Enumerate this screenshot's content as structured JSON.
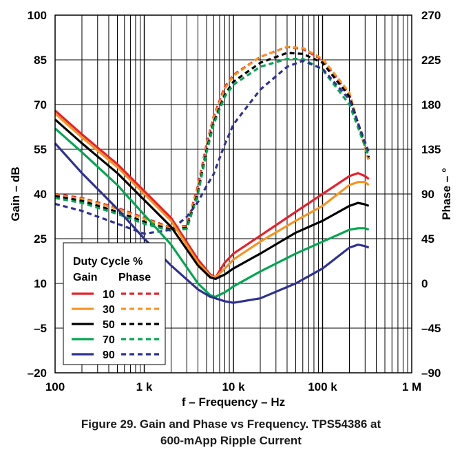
{
  "chart_data": {
    "type": "line",
    "title": "",
    "xlabel": "f – Frequency – Hz",
    "ylabel": "Gain – dB",
    "y2label": "Phase – °",
    "x_scale": "log",
    "xlim": [
      100,
      1000000
    ],
    "ylim": [
      -20,
      100
    ],
    "y2lim": [
      -90,
      270
    ],
    "grid": true,
    "x_ticks": [
      {
        "value": 100,
        "label": "100"
      },
      {
        "value": 1000,
        "label": "1 k"
      },
      {
        "value": 10000,
        "label": "10 k"
      },
      {
        "value": 100000,
        "label": "100 k"
      },
      {
        "value": 1000000,
        "label": "1 M"
      }
    ],
    "y_ticks": [
      {
        "value": 100,
        "label": "100"
      },
      {
        "value": 85,
        "label": "85"
      },
      {
        "value": 70,
        "label": "70"
      },
      {
        "value": 55,
        "label": "55"
      },
      {
        "value": 40,
        "label": "40"
      },
      {
        "value": 25,
        "label": "25"
      },
      {
        "value": 10,
        "label": "10"
      },
      {
        "value": -5,
        "label": "–5"
      },
      {
        "value": -20,
        "label": "–20"
      }
    ],
    "y2_ticks": [
      {
        "value": 270,
        "label": "270"
      },
      {
        "value": 225,
        "label": "225"
      },
      {
        "value": 180,
        "label": "180"
      },
      {
        "value": 135,
        "label": "135"
      },
      {
        "value": 90,
        "label": "90"
      },
      {
        "value": 45,
        "label": "45"
      },
      {
        "value": 0,
        "label": "0"
      },
      {
        "value": -45,
        "label": "–45"
      },
      {
        "value": -90,
        "label": "–90"
      }
    ],
    "legend": {
      "position": "bottom-left",
      "title": "Duty Cycle %",
      "col_gain": "Gain",
      "col_phase": "Phase"
    },
    "series": [
      {
        "name": "10",
        "color": "#e8202a",
        "gain": [
          [
            100,
            68
          ],
          [
            200,
            60
          ],
          [
            500,
            50
          ],
          [
            1000,
            41
          ],
          [
            2000,
            32
          ],
          [
            4000,
            18
          ],
          [
            5500,
            13
          ],
          [
            6300,
            12
          ],
          [
            8000,
            17
          ],
          [
            10000,
            20
          ],
          [
            20000,
            26
          ],
          [
            50000,
            34
          ],
          [
            100000,
            40
          ],
          [
            200000,
            46
          ],
          [
            250000,
            47
          ],
          [
            300000,
            46
          ],
          [
            330000,
            45
          ]
        ],
        "phase": [
          [
            100,
            90
          ],
          [
            200,
            86
          ],
          [
            500,
            76
          ],
          [
            1000,
            66
          ],
          [
            2000,
            56
          ],
          [
            3000,
            58
          ],
          [
            4000,
            98
          ],
          [
            5000,
            140
          ],
          [
            6000,
            168
          ],
          [
            8000,
            198
          ],
          [
            10000,
            210
          ],
          [
            20000,
            228
          ],
          [
            40000,
            238
          ],
          [
            60000,
            236
          ],
          [
            100000,
            225
          ],
          [
            200000,
            190
          ],
          [
            330000,
            125
          ]
        ]
      },
      {
        "name": "30",
        "color": "#f7931e",
        "gain": [
          [
            100,
            67
          ],
          [
            200,
            59
          ],
          [
            500,
            49
          ],
          [
            1000,
            40
          ],
          [
            2000,
            31
          ],
          [
            4000,
            17
          ],
          [
            5500,
            12.5
          ],
          [
            6300,
            12
          ],
          [
            8000,
            15
          ],
          [
            10000,
            18
          ],
          [
            20000,
            24
          ],
          [
            50000,
            31
          ],
          [
            100000,
            36
          ],
          [
            200000,
            43
          ],
          [
            250000,
            44
          ],
          [
            300000,
            44
          ],
          [
            330000,
            43
          ]
        ],
        "phase": [
          [
            100,
            89
          ],
          [
            200,
            85
          ],
          [
            500,
            75
          ],
          [
            1000,
            65
          ],
          [
            2000,
            55
          ],
          [
            3000,
            57
          ],
          [
            4000,
            96
          ],
          [
            5000,
            138
          ],
          [
            6000,
            166
          ],
          [
            8000,
            196
          ],
          [
            10000,
            209
          ],
          [
            20000,
            228
          ],
          [
            40000,
            238
          ],
          [
            60000,
            237
          ],
          [
            100000,
            226
          ],
          [
            200000,
            192
          ],
          [
            330000,
            123
          ]
        ]
      },
      {
        "name": "50",
        "color": "#000000",
        "gain": [
          [
            100,
            65
          ],
          [
            200,
            57
          ],
          [
            500,
            47
          ],
          [
            1000,
            38
          ],
          [
            2000,
            29
          ],
          [
            4000,
            16
          ],
          [
            5500,
            12
          ],
          [
            6300,
            11.5
          ],
          [
            8000,
            13
          ],
          [
            10000,
            15
          ],
          [
            20000,
            20
          ],
          [
            50000,
            27
          ],
          [
            100000,
            31
          ],
          [
            200000,
            36
          ],
          [
            250000,
            37
          ],
          [
            300000,
            36.5
          ],
          [
            330000,
            36
          ]
        ],
        "phase": [
          [
            100,
            88
          ],
          [
            200,
            83
          ],
          [
            500,
            72
          ],
          [
            1000,
            62
          ],
          [
            2000,
            54
          ],
          [
            3000,
            56
          ],
          [
            4000,
            92
          ],
          [
            5000,
            134
          ],
          [
            6000,
            162
          ],
          [
            8000,
            190
          ],
          [
            10000,
            203
          ],
          [
            20000,
            222
          ],
          [
            40000,
            232
          ],
          [
            60000,
            231
          ],
          [
            100000,
            222
          ],
          [
            200000,
            188
          ],
          [
            330000,
            127
          ]
        ]
      },
      {
        "name": "70",
        "color": "#00a651",
        "gain": [
          [
            100,
            62
          ],
          [
            200,
            54
          ],
          [
            500,
            43
          ],
          [
            1000,
            33
          ],
          [
            2000,
            23
          ],
          [
            4000,
            10
          ],
          [
            5500,
            6
          ],
          [
            6300,
            5.5
          ],
          [
            8000,
            7
          ],
          [
            10000,
            9
          ],
          [
            20000,
            14
          ],
          [
            50000,
            20
          ],
          [
            100000,
            24
          ],
          [
            200000,
            28
          ],
          [
            250000,
            28.5
          ],
          [
            300000,
            28.5
          ],
          [
            330000,
            28
          ]
        ],
        "phase": [
          [
            100,
            86
          ],
          [
            200,
            81
          ],
          [
            500,
            70
          ],
          [
            1000,
            60
          ],
          [
            2000,
            53
          ],
          [
            3000,
            55
          ],
          [
            4000,
            90
          ],
          [
            5000,
            132
          ],
          [
            6000,
            160
          ],
          [
            8000,
            188
          ],
          [
            10000,
            200
          ],
          [
            20000,
            218
          ],
          [
            40000,
            226
          ],
          [
            60000,
            226
          ],
          [
            100000,
            215
          ],
          [
            200000,
            180
          ],
          [
            330000,
            128
          ]
        ]
      },
      {
        "name": "90",
        "color": "#2e3192",
        "gain": [
          [
            100,
            57
          ],
          [
            200,
            47
          ],
          [
            500,
            35
          ],
          [
            1000,
            25
          ],
          [
            2000,
            16
          ],
          [
            4000,
            8
          ],
          [
            5500,
            5.5
          ],
          [
            6300,
            5
          ],
          [
            8000,
            4
          ],
          [
            10000,
            3.5
          ],
          [
            20000,
            5
          ],
          [
            50000,
            10
          ],
          [
            100000,
            15
          ],
          [
            200000,
            22
          ],
          [
            250000,
            23
          ],
          [
            300000,
            22.5
          ],
          [
            330000,
            22
          ]
        ],
        "phase": [
          [
            100,
            80
          ],
          [
            200,
            73
          ],
          [
            500,
            60
          ],
          [
            1000,
            50
          ],
          [
            2000,
            54
          ],
          [
            3000,
            67
          ],
          [
            4000,
            82
          ],
          [
            5000,
            98
          ],
          [
            6000,
            110
          ],
          [
            8000,
            140
          ],
          [
            10000,
            160
          ],
          [
            20000,
            195
          ],
          [
            40000,
            218
          ],
          [
            60000,
            224
          ],
          [
            100000,
            216
          ],
          [
            200000,
            185
          ],
          [
            330000,
            132
          ]
        ]
      }
    ]
  },
  "caption": {
    "line1": "Figure 29. Gain and Phase vs Frequency. TPS54386 at",
    "line2": "600-mApp Ripple Current"
  }
}
